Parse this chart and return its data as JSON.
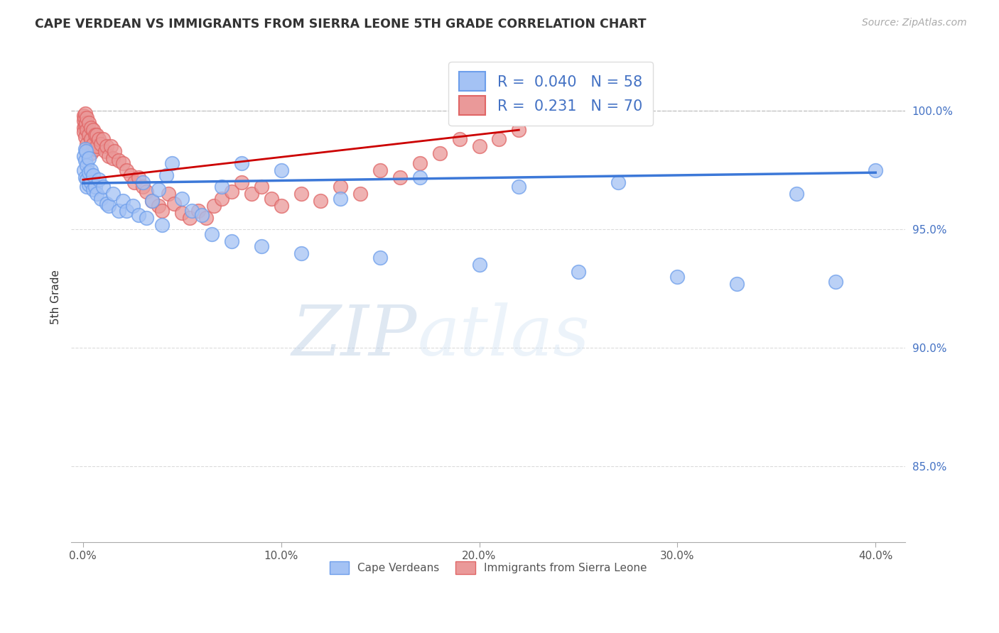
{
  "title": "CAPE VERDEAN VS IMMIGRANTS FROM SIERRA LEONE 5TH GRADE CORRELATION CHART",
  "source": "Source: ZipAtlas.com",
  "ylabel": "5th Grade",
  "xlabel_ticks": [
    "0.0%",
    "10.0%",
    "20.0%",
    "30.0%",
    "40.0%"
  ],
  "xlabel_vals": [
    0.0,
    0.1,
    0.2,
    0.3,
    0.4
  ],
  "ylabel_ticks": [
    "85.0%",
    "90.0%",
    "95.0%",
    "100.0%"
  ],
  "ylabel_vals": [
    0.85,
    0.9,
    0.95,
    1.0
  ],
  "ylim": [
    0.818,
    1.025
  ],
  "xlim": [
    -0.006,
    0.415
  ],
  "blue_color": "#a4c2f4",
  "pink_color": "#ea9999",
  "blue_edge_color": "#6d9eeb",
  "pink_edge_color": "#e06666",
  "blue_line_color": "#3c78d8",
  "pink_line_color": "#cc0000",
  "legend_blue_label": "R =  0.040   N = 58",
  "legend_pink_label": "R =  0.231   N = 70",
  "legend_label_blue": "Cape Verdeans",
  "legend_label_pink": "Immigrants from Sierra Leone",
  "blue_x": [
    0.0005,
    0.0005,
    0.001,
    0.001,
    0.001,
    0.0015,
    0.002,
    0.002,
    0.002,
    0.003,
    0.003,
    0.003,
    0.004,
    0.004,
    0.005,
    0.005,
    0.006,
    0.007,
    0.008,
    0.009,
    0.01,
    0.012,
    0.013,
    0.015,
    0.018,
    0.02,
    0.022,
    0.025,
    0.028,
    0.03,
    0.032,
    0.035,
    0.038,
    0.04,
    0.042,
    0.045,
    0.05,
    0.055,
    0.06,
    0.065,
    0.07,
    0.075,
    0.08,
    0.09,
    0.1,
    0.11,
    0.13,
    0.15,
    0.17,
    0.2,
    0.22,
    0.25,
    0.27,
    0.3,
    0.33,
    0.36,
    0.38,
    0.4
  ],
  "blue_y": [
    0.981,
    0.975,
    0.984,
    0.979,
    0.972,
    0.983,
    0.977,
    0.971,
    0.968,
    0.98,
    0.974,
    0.969,
    0.975,
    0.97,
    0.973,
    0.967,
    0.968,
    0.965,
    0.971,
    0.963,
    0.968,
    0.961,
    0.96,
    0.965,
    0.958,
    0.962,
    0.958,
    0.96,
    0.956,
    0.97,
    0.955,
    0.962,
    0.967,
    0.952,
    0.973,
    0.978,
    0.963,
    0.958,
    0.956,
    0.948,
    0.968,
    0.945,
    0.978,
    0.943,
    0.975,
    0.94,
    0.963,
    0.938,
    0.972,
    0.935,
    0.968,
    0.932,
    0.97,
    0.93,
    0.927,
    0.965,
    0.928,
    0.975
  ],
  "pink_x": [
    0.0003,
    0.0003,
    0.0005,
    0.0005,
    0.0008,
    0.001,
    0.001,
    0.001,
    0.0015,
    0.002,
    0.002,
    0.002,
    0.003,
    0.003,
    0.003,
    0.004,
    0.004,
    0.004,
    0.005,
    0.005,
    0.006,
    0.006,
    0.007,
    0.007,
    0.008,
    0.009,
    0.01,
    0.011,
    0.012,
    0.013,
    0.014,
    0.015,
    0.016,
    0.018,
    0.02,
    0.022,
    0.024,
    0.026,
    0.028,
    0.03,
    0.032,
    0.035,
    0.038,
    0.04,
    0.043,
    0.046,
    0.05,
    0.054,
    0.058,
    0.062,
    0.066,
    0.07,
    0.075,
    0.08,
    0.085,
    0.09,
    0.095,
    0.1,
    0.11,
    0.12,
    0.13,
    0.14,
    0.15,
    0.16,
    0.17,
    0.18,
    0.19,
    0.2,
    0.21,
    0.22
  ],
  "pink_y": [
    0.998,
    0.993,
    0.996,
    0.991,
    0.997,
    0.999,
    0.994,
    0.989,
    0.995,
    0.997,
    0.992,
    0.986,
    0.995,
    0.99,
    0.984,
    0.993,
    0.988,
    0.982,
    0.992,
    0.986,
    0.99,
    0.984,
    0.99,
    0.985,
    0.988,
    0.986,
    0.988,
    0.983,
    0.985,
    0.981,
    0.985,
    0.98,
    0.983,
    0.979,
    0.978,
    0.975,
    0.973,
    0.97,
    0.972,
    0.968,
    0.966,
    0.962,
    0.96,
    0.958,
    0.965,
    0.961,
    0.957,
    0.955,
    0.958,
    0.955,
    0.96,
    0.963,
    0.966,
    0.97,
    0.965,
    0.968,
    0.963,
    0.96,
    0.965,
    0.962,
    0.968,
    0.965,
    0.975,
    0.972,
    0.978,
    0.982,
    0.988,
    0.985,
    0.988,
    0.992
  ],
  "watermark_zip": "ZIP",
  "watermark_atlas": "atlas",
  "background_color": "#ffffff"
}
